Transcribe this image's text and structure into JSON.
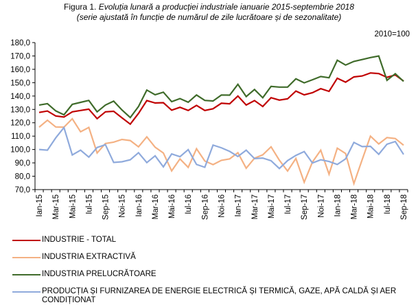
{
  "title": {
    "prefix": "Figura 1.",
    "main": " Evoluția lunară a producției industriale ianuarie 2015-septembrie 2018",
    "subtitle": "(serie ajustată în funcție de numărul de zile lucrătoare și de sezonalitate)"
  },
  "base_note": "2010=100",
  "chart_data": {
    "type": "line",
    "title": "Evoluția lunară a producției industriale ianuarie 2015-septembrie 2018",
    "subtitle": "(serie ajustată în funcție de numărul de zile lucrătoare și de sezonalitate)",
    "xlabel": "",
    "ylabel": "",
    "ylim": [
      70,
      180
    ],
    "yticks": [
      70,
      80,
      90,
      100,
      110,
      120,
      130,
      140,
      150,
      160,
      170,
      180
    ],
    "ytick_labels": [
      "70,0",
      "80,0",
      "90,0",
      "100,0",
      "110,0",
      "120,0",
      "130,0",
      "140,0",
      "150,0",
      "160,0",
      "170,0",
      "180,0"
    ],
    "grid": false,
    "legend_position": "bottom",
    "x": [
      "Ian-15",
      "Feb-15",
      "Mar-15",
      "Apr-15",
      "Mai-15",
      "Iun-15",
      "Iul-15",
      "Aug-15",
      "Sep-15",
      "Oct-15",
      "Noi-15",
      "Dec-15",
      "Ian-16",
      "Feb-16",
      "Mar-16",
      "Apr-16",
      "Mai-16",
      "Iun-16",
      "Iul-16",
      "Aug-16",
      "Sep-16",
      "Oct-16",
      "Noi-16",
      "Dec-16",
      "Ian-17",
      "Feb-17",
      "Mar-17",
      "Apr-17",
      "Mai-17",
      "Iun-17",
      "Iul-17",
      "Aug-17",
      "Sep-17",
      "Oct-17",
      "Noi-17",
      "Dec-17",
      "Ian-18",
      "Feb-18",
      "Mar-18",
      "Apr-18",
      "Mai-18",
      "Iun-18",
      "Iul-18",
      "Aug-18",
      "Sep-18"
    ],
    "xtick_labels": [
      "Ian-15",
      "Mar-15",
      "Mai-15",
      "Iul-15",
      "Sep-15",
      "Noi-15",
      "Ian-16",
      "Mar-16",
      "Mai-16",
      "Iul-16",
      "Sep-16",
      "Noi-16",
      "Ian-17",
      "Mar-17",
      "Mai-17",
      "Iul-17",
      "Sep-17",
      "Noi-17",
      "Ian-18",
      "Mar-18",
      "Mai-18",
      "Iul-18",
      "Sep-18"
    ],
    "series": [
      {
        "name": "INDUSTRIE - TOTAL",
        "color": "#c00000",
        "values": [
          127.7,
          128.8,
          125.1,
          124.3,
          128.2,
          129.2,
          130.2,
          123.1,
          128.2,
          128.6,
          123.7,
          119.0,
          127.0,
          136.6,
          134.8,
          135.0,
          129.4,
          131.6,
          129.2,
          133.0,
          129.2,
          130.5,
          134.6,
          134.2,
          140.0,
          133.3,
          136.6,
          132.2,
          138.8,
          137.0,
          137.9,
          143.7,
          140.9,
          142.5,
          145.5,
          143.5,
          153.3,
          150.4,
          154.3,
          155.0,
          157.3,
          156.8,
          154.0,
          155.8,
          151.2
        ]
      },
      {
        "name": "INDUSTRIA EXTRACTIVĂ",
        "color": "#f4b183",
        "values": [
          116.7,
          121.9,
          116.9,
          116.7,
          123.0,
          113.3,
          116.5,
          97.4,
          104.5,
          105.5,
          107.5,
          106.7,
          102.0,
          109.5,
          101.7,
          97.4,
          84.0,
          93.0,
          86.6,
          100.6,
          91.4,
          88.7,
          91.9,
          93.0,
          97.6,
          86.0,
          93.5,
          96.0,
          102.0,
          92.0,
          83.9,
          93.3,
          75.5,
          90.6,
          99.5,
          81.5,
          101.0,
          97.0,
          74.5,
          92.3,
          110.0,
          104.2,
          108.9,
          108.2,
          103.2
        ]
      },
      {
        "name": "INDUSTRIA PRELUCRĂTOARE",
        "color": "#3f6b2a",
        "values": [
          133.3,
          134.3,
          128.9,
          126.0,
          133.8,
          135.3,
          136.7,
          128.2,
          133.3,
          136.2,
          129.6,
          123.9,
          132.2,
          144.5,
          141.0,
          142.9,
          135.8,
          138.1,
          135.4,
          140.8,
          136.7,
          136.3,
          140.8,
          140.7,
          148.8,
          139.6,
          144.9,
          138.7,
          147.2,
          146.7,
          146.7,
          152.9,
          149.9,
          152.2,
          154.6,
          153.7,
          166.8,
          163.2,
          165.9,
          167.3,
          168.8,
          170.0,
          151.8,
          156.7,
          151.0
        ]
      },
      {
        "name": "PRODUCȚIA ȘI FURNIZAREA DE ENERGIE ELECTRICĂ ȘI TERMICĂ, GAZE, APĂ CALDĂ ȘI AER CONDIȚIONAT",
        "color": "#8faadc",
        "values": [
          100.0,
          99.5,
          108.7,
          116.4,
          95.9,
          99.5,
          94.3,
          101.5,
          103.6,
          90.3,
          90.8,
          92.3,
          97.6,
          90.2,
          95.3,
          87.0,
          96.7,
          94.6,
          99.9,
          88.8,
          86.7,
          103.3,
          101.3,
          98.6,
          94.8,
          99.5,
          93.2,
          93.6,
          91.6,
          85.8,
          91.7,
          95.6,
          98.5,
          89.9,
          92.3,
          91.0,
          88.8,
          93.0,
          105.3,
          102.2,
          102.4,
          96.4,
          104.0,
          106.0,
          96.3
        ]
      }
    ]
  },
  "legend": [
    {
      "label": "INDUSTRIE - TOTAL",
      "color": "#c00000"
    },
    {
      "label": "INDUSTRIA EXTRACTIVĂ",
      "color": "#f4b183"
    },
    {
      "label": "INDUSTRIA PRELUCRĂTOARE",
      "color": "#3f6b2a"
    },
    {
      "label": "PRODUCȚIA ȘI FURNIZAREA DE ENERGIE ELECTRICĂ ȘI TERMICĂ, GAZE, APĂ CALDĂ ȘI AER CONDIȚIONAT",
      "color": "#8faadc"
    }
  ]
}
